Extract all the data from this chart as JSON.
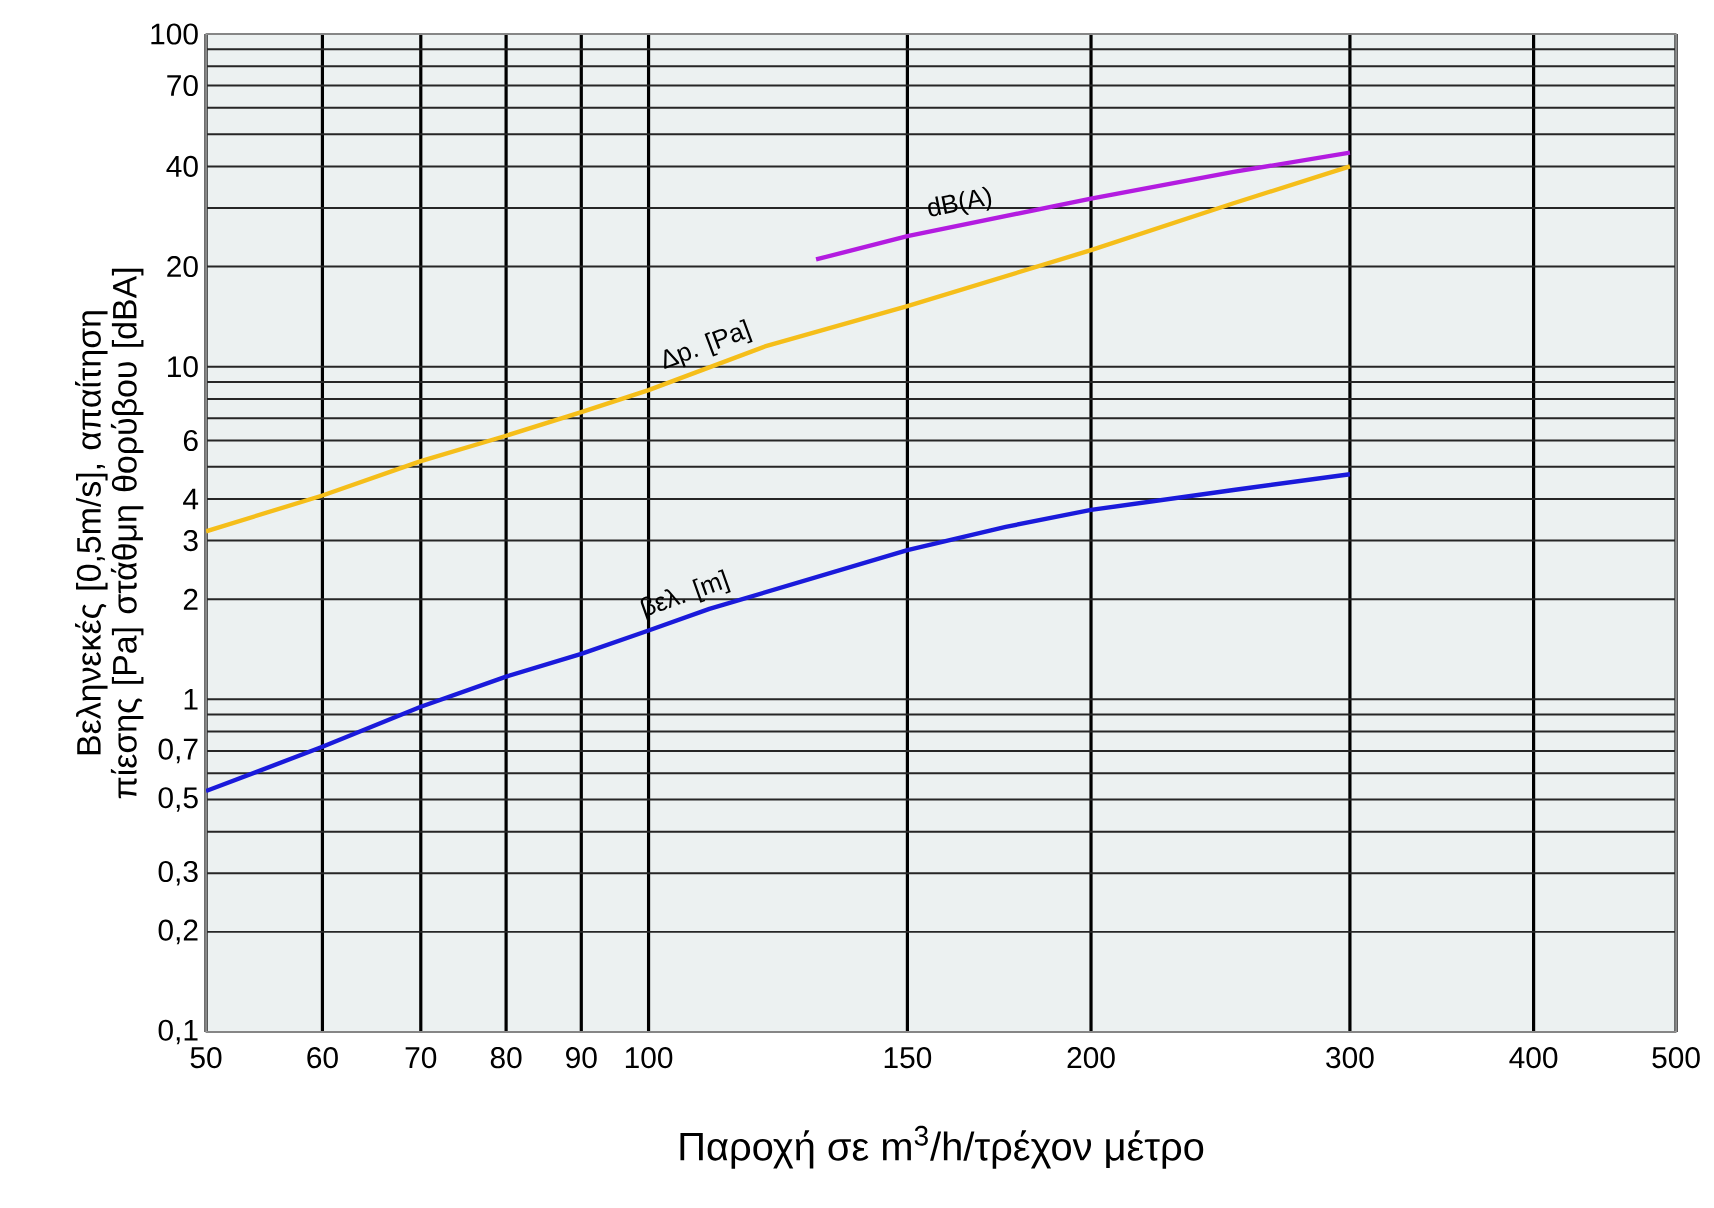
{
  "chart_data": {
    "type": "line",
    "xlabel": "Παροχή σε m$^{3}$/h/τρέχον μέτρο",
    "ylabel": "Βεληνεκές [0,5m/s], απαίτηση πίεσης [Pa] στάθμη θορύβου [dBA]",
    "log": "xy",
    "grid": true,
    "legend": false,
    "marker": "none",
    "line_style": "solid",
    "xlim": [
      50,
      500
    ],
    "ylim": [
      0.1,
      100
    ],
    "xticks": [
      50,
      60,
      70,
      80,
      90,
      100,
      150,
      200,
      300,
      400,
      500
    ],
    "yticks": [
      {
        "value": 0.1,
        "label": "0,1"
      },
      {
        "value": 0.2,
        "label": "0,2"
      },
      {
        "value": 0.3,
        "label": "0,3"
      },
      {
        "value": 0.4,
        "label": null
      },
      {
        "value": 0.5,
        "label": "0,5"
      },
      {
        "value": 0.6,
        "label": null
      },
      {
        "value": 0.7,
        "label": "0,7"
      },
      {
        "value": 0.8,
        "label": null
      },
      {
        "value": 0.9,
        "label": null
      },
      1,
      2,
      3,
      4,
      {
        "value": 5,
        "label": null
      },
      6,
      {
        "value": 7,
        "label": null
      },
      {
        "value": 8,
        "label": null
      },
      {
        "value": 9,
        "label": null
      },
      10,
      20,
      {
        "value": 30,
        "label": null
      },
      40,
      {
        "value": 50,
        "label": null
      },
      {
        "value": 60,
        "label": null
      },
      70,
      {
        "value": 80,
        "label": null
      },
      {
        "value": 90,
        "label": null
      },
      100
    ],
    "series": [
      {
        "name": "Δp. [Pa]",
        "color": "#f5be1a",
        "x": [
          50,
          60,
          70,
          80,
          90,
          100,
          120,
          150,
          200,
          250,
          300
        ],
        "values": [
          3.2,
          4.1,
          5.2,
          6.2,
          7.3,
          8.5,
          11.5,
          15.2,
          22.4,
          31,
          40
        ]
      },
      {
        "name": "dB(A)",
        "color": "#b31ce0",
        "x": [
          130,
          150,
          200,
          250,
          300
        ],
        "values": [
          21,
          24.7,
          32,
          38.5,
          44
        ]
      },
      {
        "name": "βελ. [m]",
        "color": "#1a1adb",
        "x": [
          50,
          60,
          70,
          80,
          90,
          100,
          110,
          150,
          175,
          200,
          250,
          300
        ],
        "values": [
          0.53,
          0.72,
          0.95,
          1.17,
          1.37,
          1.61,
          1.87,
          2.81,
          3.3,
          3.71,
          4.26,
          4.75
        ]
      }
    ]
  }
}
